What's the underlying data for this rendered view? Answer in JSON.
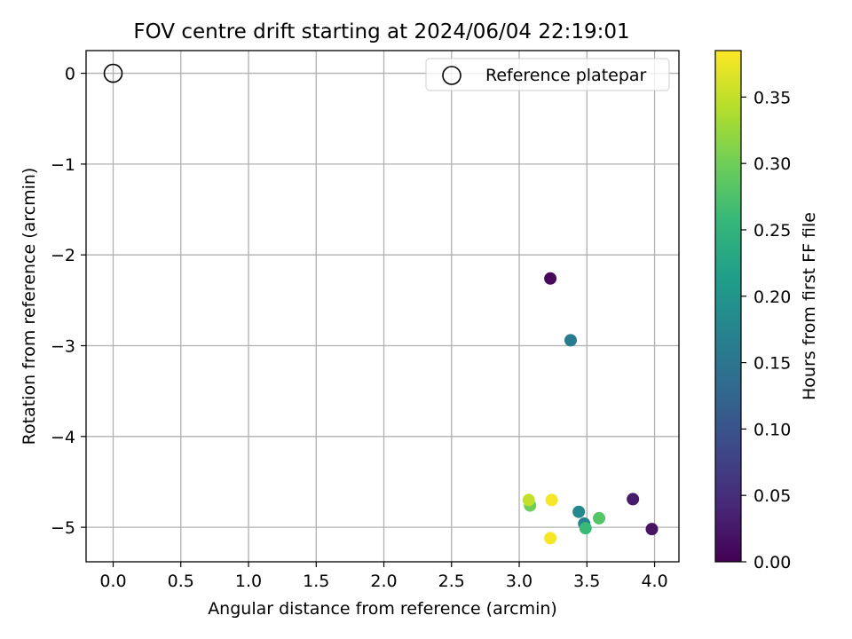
{
  "chart_data": {
    "type": "scatter",
    "title": "FOV centre drift starting at 2024/06/04 22:19:01",
    "xlabel": "Angular distance from reference (arcmin)",
    "ylabel": "Rotation from reference (arcmin)",
    "xlim": [
      -0.2,
      4.18
    ],
    "ylim": [
      -5.38,
      0.25
    ],
    "xticks": [
      0.0,
      0.5,
      1.0,
      1.5,
      2.0,
      2.5,
      3.0,
      3.5,
      4.0
    ],
    "xtick_labels": [
      "0.0",
      "0.5",
      "1.0",
      "1.5",
      "2.0",
      "2.5",
      "3.0",
      "3.5",
      "4.0"
    ],
    "yticks": [
      0,
      -1,
      -2,
      -3,
      -4,
      -5
    ],
    "ytick_labels": [
      "0",
      "−1",
      "−2",
      "−3",
      "−4",
      "−5"
    ],
    "grid": true,
    "legend": {
      "placement": "top-right",
      "entries": [
        "Reference platepar"
      ]
    },
    "reference_point": {
      "name": "Reference platepar",
      "x": 0.0,
      "y": 0.0
    },
    "points": [
      {
        "x": 3.23,
        "y": -2.26,
        "c": 0.01
      },
      {
        "x": 3.98,
        "y": -5.02,
        "c": 0.02
      },
      {
        "x": 3.84,
        "y": -4.69,
        "c": 0.03
      },
      {
        "x": 3.38,
        "y": -2.94,
        "c": 0.16
      },
      {
        "x": 3.48,
        "y": -4.96,
        "c": 0.17
      },
      {
        "x": 3.44,
        "y": -4.83,
        "c": 0.18
      },
      {
        "x": 3.49,
        "y": -5.01,
        "c": 0.26
      },
      {
        "x": 3.59,
        "y": -4.9,
        "c": 0.28
      },
      {
        "x": 3.08,
        "y": -4.76,
        "c": 0.3
      },
      {
        "x": 3.07,
        "y": -4.7,
        "c": 0.35
      },
      {
        "x": 3.24,
        "y": -4.7,
        "c": 0.38
      },
      {
        "x": 3.23,
        "y": -5.12,
        "c": 0.38
      }
    ],
    "colorbar": {
      "label": "Hours from first FF file",
      "colormap": "viridis",
      "range": [
        0.0,
        0.385
      ],
      "ticks": [
        0.0,
        0.05,
        0.1,
        0.15,
        0.2,
        0.25,
        0.3,
        0.35
      ],
      "tick_labels": [
        "0.00",
        "0.05",
        "0.10",
        "0.15",
        "0.20",
        "0.25",
        "0.30",
        "0.35"
      ]
    },
    "colors": {
      "viridis": [
        "#440154",
        "#482878",
        "#3e4989",
        "#31688e",
        "#26828e",
        "#1f9e89",
        "#35b779",
        "#6ece58",
        "#b5de2b",
        "#fde725"
      ],
      "grid": "#b0b0b0"
    }
  }
}
